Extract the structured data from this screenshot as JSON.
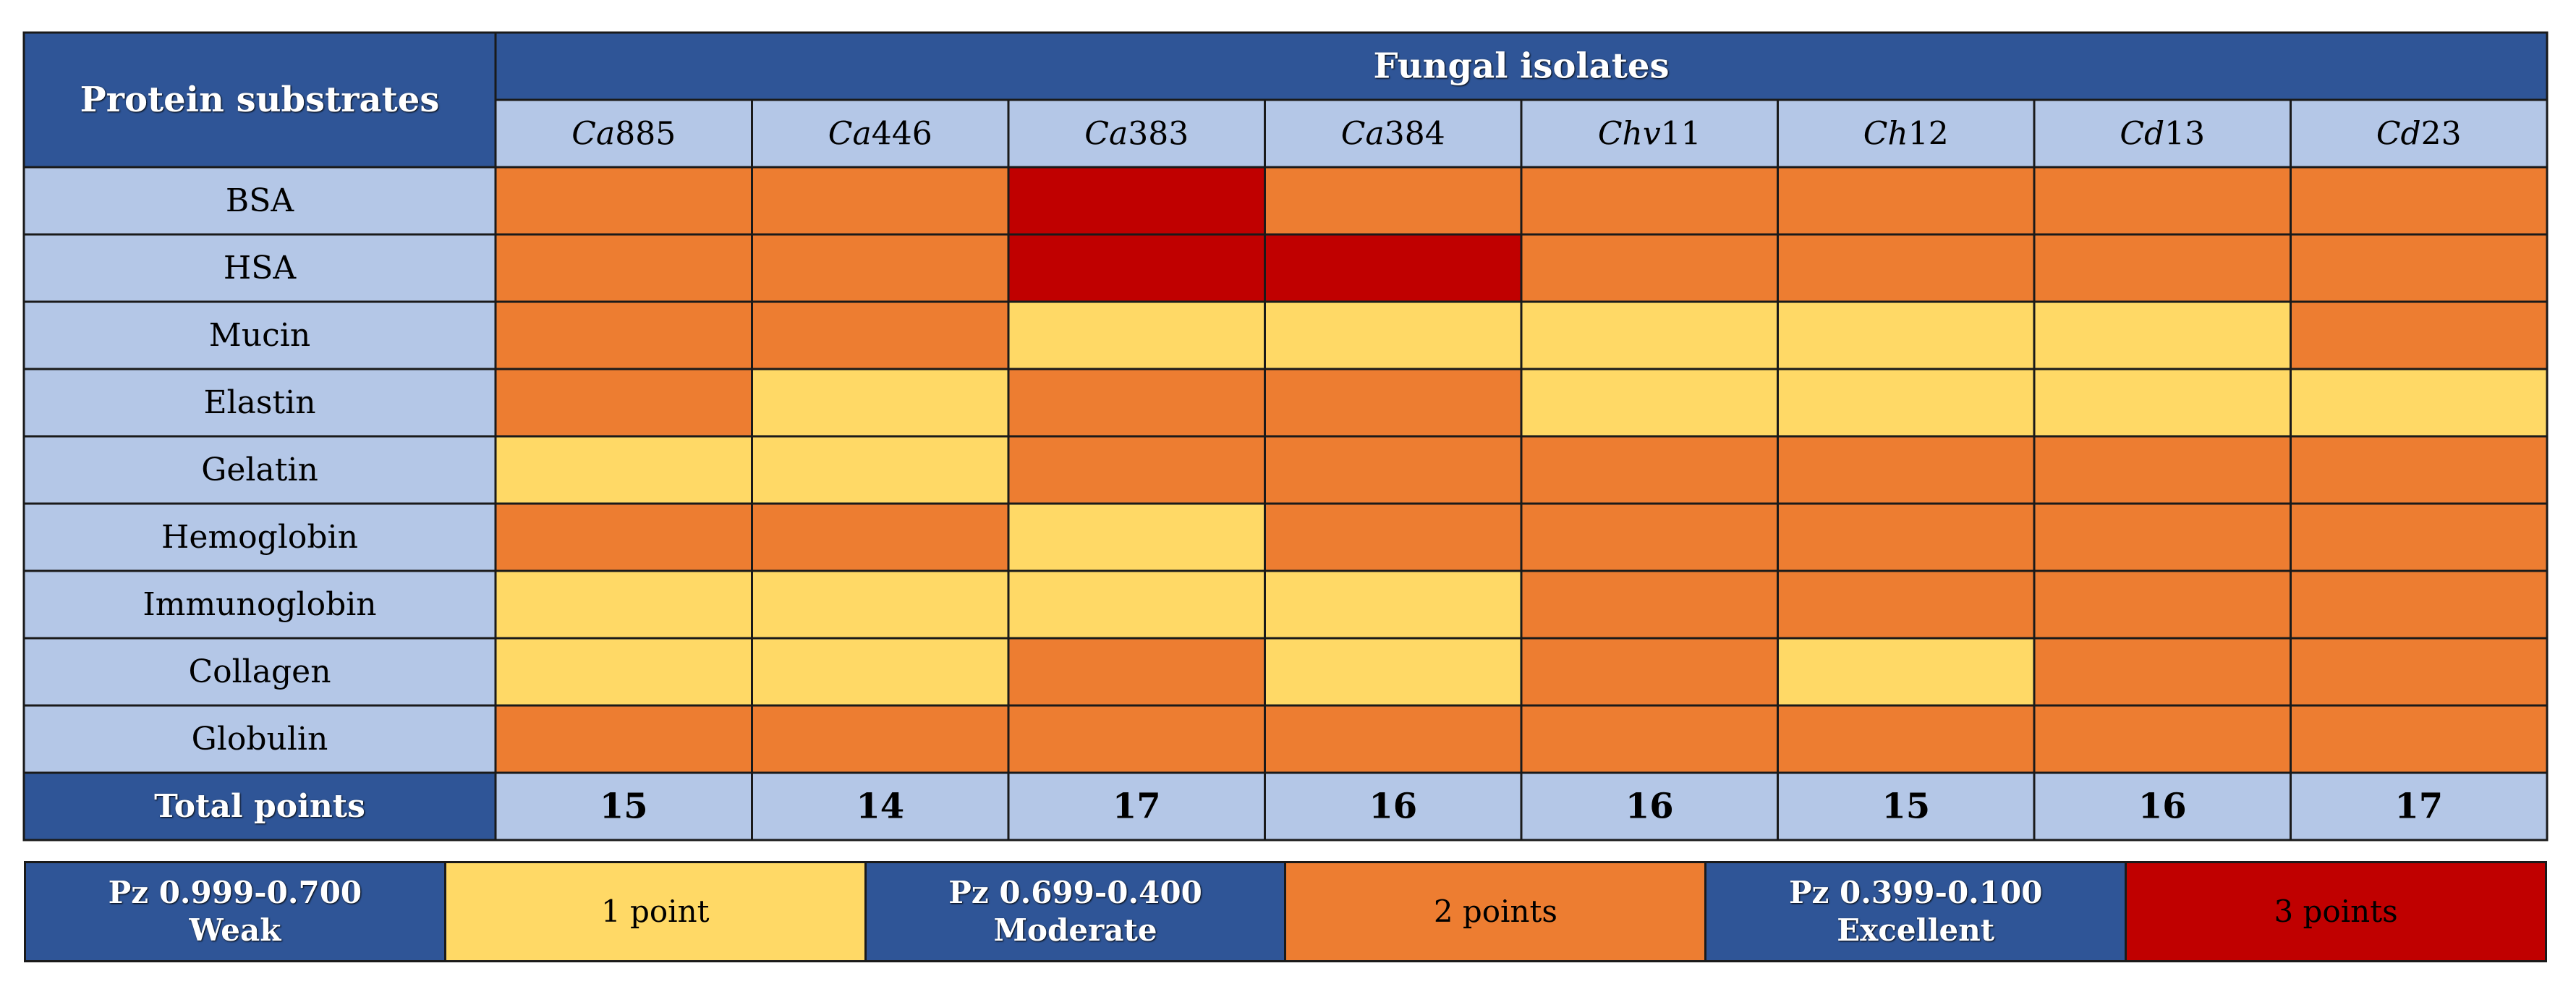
{
  "colors": {
    "header_blue": "#2f5597",
    "light_blue": "#b4c7e7",
    "weak_1pt": "#ffd966",
    "moderate_2pt": "#ed7d31",
    "excellent_3pt": "#c00000"
  },
  "chart_data": {
    "type": "heatmap",
    "title": "Fungal isolates",
    "row_header": "Protein substrates",
    "columns": [
      {
        "prefix": "Ca",
        "number": "885"
      },
      {
        "prefix": "Ca",
        "number": "446"
      },
      {
        "prefix": "Ca",
        "number": "383"
      },
      {
        "prefix": "Ca",
        "number": "384"
      },
      {
        "prefix": "Chv",
        "number": "11"
      },
      {
        "prefix": "Ch",
        "number": "12"
      },
      {
        "prefix": "Cd",
        "number": "13"
      },
      {
        "prefix": "Cd",
        "number": "23"
      }
    ],
    "rows": [
      "BSA",
      "HSA",
      "Mucin",
      "Elastin",
      "Gelatin",
      "Hemoglobin",
      "Immunoglobin",
      "Collagen",
      "Globulin"
    ],
    "values": [
      [
        2,
        2,
        3,
        2,
        2,
        2,
        2,
        2
      ],
      [
        2,
        2,
        3,
        3,
        2,
        2,
        2,
        2
      ],
      [
        2,
        2,
        1,
        1,
        1,
        1,
        1,
        2
      ],
      [
        2,
        1,
        2,
        2,
        1,
        1,
        1,
        1
      ],
      [
        1,
        1,
        2,
        2,
        2,
        2,
        2,
        2
      ],
      [
        2,
        2,
        1,
        2,
        2,
        2,
        2,
        2
      ],
      [
        1,
        1,
        1,
        1,
        2,
        2,
        2,
        2
      ],
      [
        1,
        1,
        2,
        1,
        2,
        1,
        2,
        2
      ],
      [
        2,
        2,
        2,
        2,
        2,
        2,
        2,
        2
      ]
    ],
    "totals_label": "Total points",
    "totals": [
      "15",
      "14",
      "17",
      "16",
      "16",
      "15",
      "16",
      "17"
    ],
    "scale_colors": {
      "1": "#ffd966",
      "2": "#ed7d31",
      "3": "#c00000"
    }
  },
  "legend": [
    {
      "range": "Pz 0.999-0.700",
      "level": "Weak",
      "points": "1 point",
      "color": "#ffd966"
    },
    {
      "range": "Pz 0.699-0.400",
      "level": "Moderate",
      "points": "2 points",
      "color": "#ed7d31"
    },
    {
      "range": "Pz 0.399-0.100",
      "level": "Excellent",
      "points": "3 points",
      "color": "#c00000"
    }
  ]
}
